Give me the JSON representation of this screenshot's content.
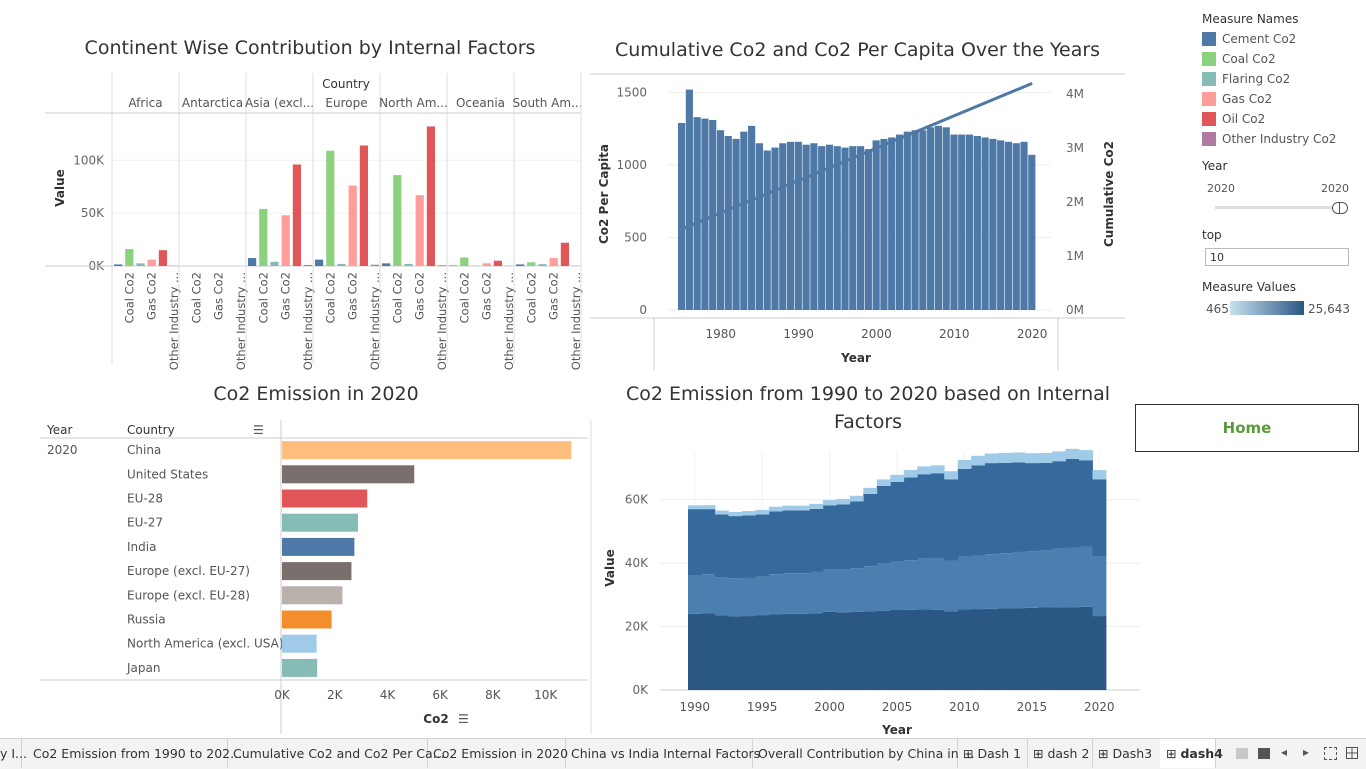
{
  "charts": {
    "continent": {
      "title": "Continent Wise Contribution by Internal Factors"
    },
    "cumulative": {
      "title": "Cumulative Co2 and Co2 Per Capita Over the Years"
    },
    "emission2020": {
      "title": "Co2 Emission in 2020"
    },
    "factors": {
      "title": "Co2 Emission from 1990 to 2020 based on Internal",
      "title2": "Factors"
    }
  },
  "legend": {
    "measure_names_title": "Measure Names",
    "items": [
      {
        "label": "Cement Co2",
        "color": "#4e79a7"
      },
      {
        "label": "Coal Co2",
        "color": "#8cd17d"
      },
      {
        "label": "Flaring Co2",
        "color": "#86bcb6"
      },
      {
        "label": "Gas Co2",
        "color": "#ff9d9a"
      },
      {
        "label": "Oil Co2",
        "color": "#e15759"
      },
      {
        "label": "Other Industry Co2",
        "color": "#b07aa1"
      }
    ],
    "year_title": "Year",
    "year_min": "2020",
    "year_max": "2020",
    "top_title": "top",
    "top_value": "10",
    "measure_values_title": "Measure Values",
    "mv_min": "465",
    "mv_max": "25,643"
  },
  "home_label": "Home",
  "tabs": [
    {
      "label": "y I...",
      "icon": ""
    },
    {
      "label": "Co2 Emission from 1990 to 202...",
      "icon": ""
    },
    {
      "label": "Cumulative Co2 and Co2 Per Ca...",
      "icon": ""
    },
    {
      "label": "Co2 Emission in 2020",
      "icon": ""
    },
    {
      "label": "China vs India Internal Factors",
      "icon": ""
    },
    {
      "label": "Overall Contribution by China in ...",
      "icon": ""
    },
    {
      "label": "Dash 1",
      "icon": "grid-icon"
    },
    {
      "label": "dash 2",
      "icon": "grid-icon"
    },
    {
      "label": "Dash3",
      "icon": "grid-icon"
    },
    {
      "label": "dash4",
      "icon": "grid-icon",
      "active": true
    }
  ],
  "chart_data": [
    {
      "type": "bar",
      "title": "Continent Wise Contribution by Internal Factors",
      "column_header": "Country",
      "ylabel": "Value",
      "ylim": [
        0,
        140000
      ],
      "yticks": [
        {
          "v": 0,
          "label": "0K"
        },
        {
          "v": 50000,
          "label": "50K"
        },
        {
          "v": 100000,
          "label": "100K"
        }
      ],
      "continents": [
        "Africa",
        "Antarctica",
        "Asia (excl...",
        "Europe",
        "North Am...",
        "Oceania",
        "South Am..."
      ],
      "factors": [
        "Cement Co2",
        "Coal Co2",
        "Flaring Co2",
        "Gas Co2",
        "Oil Co2",
        "Other Industry Co2"
      ],
      "factor_tick_labels": [
        "Coal Co2",
        "Gas Co2",
        "Other Industry ..."
      ],
      "values": [
        [
          1500,
          16000,
          2500,
          6000,
          15000,
          300
        ],
        [
          0,
          0,
          0,
          0,
          0,
          0
        ],
        [
          7500,
          54000,
          4000,
          48000,
          96000,
          1000
        ],
        [
          6000,
          109000,
          2000,
          76000,
          114000,
          1200
        ],
        [
          2500,
          86000,
          2000,
          67000,
          132000,
          700
        ],
        [
          500,
          8000,
          300,
          2500,
          5000,
          100
        ],
        [
          1500,
          3500,
          1800,
          7500,
          22000,
          200
        ]
      ]
    },
    {
      "type": "bar",
      "title": "Cumulative Co2 and Co2 Per Capita Over the Years",
      "xlabel": "Year",
      "ylabel": "Co2 Per Capita",
      "y2label": "Cumulative Co2",
      "ylim": [
        0,
        1600
      ],
      "y2lim": [
        0,
        4300000
      ],
      "yticks": [
        0,
        500,
        1000,
        1500
      ],
      "y2ticks": [
        {
          "v": 0,
          "label": "0M"
        },
        {
          "v": 1000000,
          "label": "1M"
        },
        {
          "v": 2000000,
          "label": "2M"
        },
        {
          "v": 3000000,
          "label": "3M"
        },
        {
          "v": 4000000,
          "label": "4M"
        }
      ],
      "xticks": [
        1980,
        1990,
        2000,
        2010,
        2020
      ],
      "x": [
        1975,
        1976,
        1977,
        1978,
        1979,
        1980,
        1981,
        1982,
        1983,
        1984,
        1985,
        1986,
        1987,
        1988,
        1989,
        1990,
        1991,
        1992,
        1993,
        1994,
        1995,
        1996,
        1997,
        1998,
        1999,
        2000,
        2001,
        2002,
        2003,
        2004,
        2005,
        2006,
        2007,
        2008,
        2009,
        2010,
        2011,
        2012,
        2013,
        2014,
        2015,
        2016,
        2017,
        2018,
        2019,
        2020
      ],
      "per_capita": [
        1290,
        1520,
        1330,
        1320,
        1310,
        1240,
        1200,
        1180,
        1230,
        1270,
        1150,
        1100,
        1120,
        1150,
        1160,
        1160,
        1140,
        1150,
        1130,
        1140,
        1130,
        1120,
        1130,
        1130,
        1110,
        1170,
        1180,
        1190,
        1210,
        1230,
        1240,
        1240,
        1260,
        1270,
        1260,
        1210,
        1210,
        1210,
        1200,
        1190,
        1180,
        1170,
        1160,
        1150,
        1160,
        1070
      ],
      "cumulative_line": {
        "x": [
          1975,
          2020
        ],
        "y": [
          1500000,
          4200000
        ]
      }
    },
    {
      "type": "bar",
      "title": "Co2 Emission in 2020",
      "year": "2020",
      "year_header": "Year",
      "country_header": "Country",
      "xlabel": "Co2",
      "xlim": [
        0,
        11000
      ],
      "xticks": [
        {
          "v": 0,
          "label": "0K"
        },
        {
          "v": 2000,
          "label": "2K"
        },
        {
          "v": 4000,
          "label": "4K"
        },
        {
          "v": 6000,
          "label": "6K"
        },
        {
          "v": 8000,
          "label": "8K"
        },
        {
          "v": 10000,
          "label": "10K"
        }
      ],
      "categories": [
        "China",
        "United States",
        "EU-28",
        "EU-27",
        "India",
        "Europe (excl. EU-27)",
        "Europe (excl. EU-28)",
        "Russia",
        "North America (excl. USA)",
        "Japan"
      ],
      "values": [
        10668,
        4713,
        2930,
        2580,
        2442,
        2330,
        1990,
        1577,
        1011,
        1031
      ],
      "colors": [
        "#ffbe7d",
        "#79706e",
        "#e15759",
        "#86bcb6",
        "#4e79a7",
        "#79706e",
        "#bab0ac",
        "#f28e2b",
        "#a0cbe8",
        "#86bcb6"
      ]
    },
    {
      "type": "area",
      "title": "Co2 Emission from 1990 to 2020 based on Internal Factors",
      "xlabel": "Year",
      "ylabel": "Value",
      "ylim": [
        0,
        75000
      ],
      "yticks": [
        {
          "v": 0,
          "label": "0K"
        },
        {
          "v": 20000,
          "label": "20K"
        },
        {
          "v": 40000,
          "label": "40K"
        },
        {
          "v": 60000,
          "label": "60K"
        }
      ],
      "xticks": [
        1990,
        1995,
        2000,
        2005,
        2010,
        2015,
        2020
      ],
      "x": [
        1990,
        1991,
        1992,
        1993,
        1994,
        1995,
        1996,
        1997,
        1998,
        1999,
        2000,
        2001,
        2002,
        2003,
        2004,
        2005,
        2006,
        2007,
        2008,
        2009,
        2010,
        2011,
        2012,
        2013,
        2014,
        2015,
        2016,
        2017,
        2018,
        2019,
        2020
      ],
      "series": [
        {
          "name": "Oil Co2",
          "color": "#2a5783",
          "values": [
            24000,
            24200,
            23500,
            23200,
            23300,
            23600,
            23900,
            24000,
            24000,
            24200,
            24600,
            24500,
            24600,
            24800,
            25000,
            25200,
            25300,
            25400,
            25300,
            24800,
            25400,
            25500,
            25600,
            25700,
            25800,
            25900,
            26000,
            26100,
            26100,
            26200,
            23300
          ]
        },
        {
          "name": "Gas Co2",
          "color": "#4a7fb0",
          "values": [
            12000,
            12300,
            12000,
            12000,
            12000,
            12200,
            12600,
            12800,
            12800,
            13000,
            13400,
            13500,
            13800,
            14200,
            14800,
            15200,
            15600,
            16000,
            16300,
            16000,
            16600,
            16900,
            17200,
            17400,
            17700,
            17800,
            18000,
            18400,
            18800,
            19000,
            18800
          ]
        },
        {
          "name": "Coal Co2",
          "color": "#366a9c",
          "values": [
            21000,
            20500,
            19800,
            19600,
            19700,
            19500,
            19800,
            19800,
            19800,
            19900,
            20200,
            20500,
            21000,
            22800,
            24500,
            25200,
            26100,
            26600,
            26700,
            25600,
            27700,
            28400,
            28700,
            28500,
            28200,
            27800,
            27600,
            27600,
            27900,
            27200,
            24300
          ]
        },
        {
          "name": "Cement Co2",
          "color": "#a0cbe8",
          "values": [
            1200,
            1250,
            1250,
            1300,
            1400,
            1450,
            1450,
            1500,
            1500,
            1550,
            1650,
            1700,
            1800,
            1900,
            2050,
            2200,
            2350,
            2450,
            2500,
            2550,
            2800,
            3000,
            3050,
            3100,
            3150,
            3100,
            3100,
            3100,
            3200,
            3200,
            2900
          ]
        }
      ]
    }
  ]
}
